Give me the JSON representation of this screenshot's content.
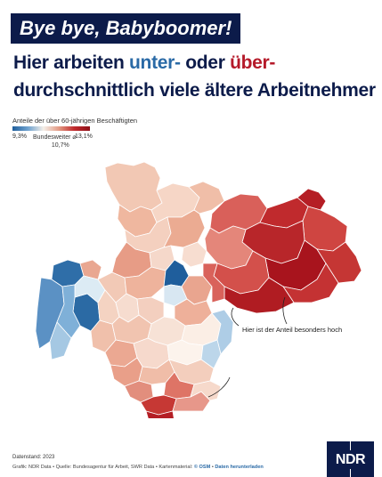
{
  "banner": "Bye bye, Babyboomer!",
  "headline": {
    "part1": "Hier arbeiten ",
    "unter": "unter-",
    "part2": " oder ",
    "ueber": "über-",
    "line2": "durchschnittlich viele ältere Arbeitnehmer"
  },
  "subtitle": "Anteile der über 60-jährigen Beschäftigten",
  "legend": {
    "min": "9,3%",
    "mid_label": "Bundesweiter ⌀",
    "mid_value": "10,7%",
    "max": "13,1%",
    "colors": [
      "#1f5e9c",
      "#6fa2cf",
      "#f4efe9",
      "#e39a84",
      "#c02a2d",
      "#8e1018"
    ]
  },
  "annotation": "Hier ist der Anteil besonders hoch",
  "footer": {
    "date": "Datenstand: 2023",
    "credit": "Grafik: NDR Data • Quelle: Bundesagentur für Arbeit, SWR Data • Kartenmaterial:",
    "osm": "© OSM",
    "separator": " • ",
    "download": "Daten herunterladen"
  },
  "logo": "NDR"
}
